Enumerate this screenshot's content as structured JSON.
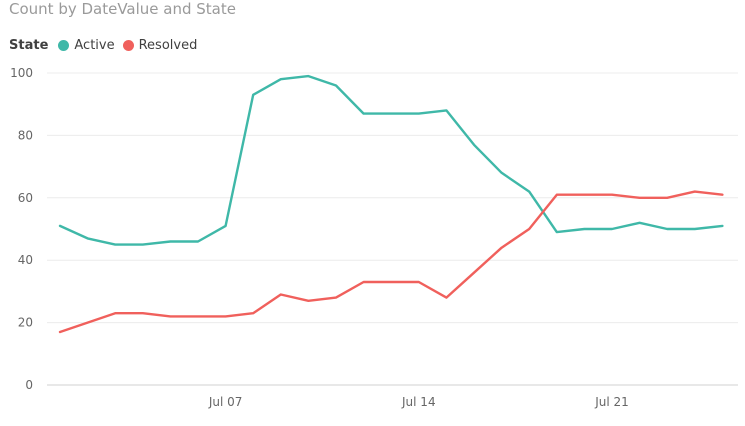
{
  "title": "Count by DateValue and State",
  "legend": {
    "title": "State",
    "items": [
      {
        "label": "Active",
        "color": "#3fb8a8"
      },
      {
        "label": "Resolved",
        "color": "#f0605c"
      }
    ]
  },
  "chart_data": {
    "type": "line",
    "title": "Count by DateValue and State",
    "xlabel": "",
    "ylabel": "",
    "x": [
      "2024-07-01",
      "2024-07-02",
      "2024-07-03",
      "2024-07-04",
      "2024-07-05",
      "2024-07-06",
      "2024-07-07",
      "2024-07-08",
      "2024-07-09",
      "2024-07-10",
      "2024-07-11",
      "2024-07-12",
      "2024-07-13",
      "2024-07-14",
      "2024-07-15",
      "2024-07-16",
      "2024-07-17",
      "2024-07-18",
      "2024-07-19",
      "2024-07-20",
      "2024-07-21",
      "2024-07-22",
      "2024-07-23",
      "2024-07-24",
      "2024-07-25",
      "2024-07-26"
    ],
    "x_ticks": [
      "Jul 07",
      "Jul 14",
      "Jul 21"
    ],
    "y_ticks": [
      "0",
      "20",
      "40",
      "60",
      "80",
      "100"
    ],
    "ylim": [
      0,
      100
    ],
    "grid": true,
    "legend_position": "top-left",
    "series": [
      {
        "name": "Active",
        "color": "#3fb8a8",
        "values": [
          51,
          47,
          45,
          45,
          46,
          46,
          51,
          93,
          98,
          99,
          96,
          87,
          87,
          87,
          88,
          77,
          68,
          62,
          49,
          50,
          50,
          52,
          50,
          50,
          51,
          null
        ]
      },
      {
        "name": "Resolved",
        "color": "#f0605c",
        "values": [
          17,
          20,
          23,
          23,
          22,
          22,
          22,
          23,
          29,
          27,
          28,
          33,
          33,
          33,
          28,
          36,
          44,
          50,
          61,
          61,
          61,
          60,
          60,
          62,
          61,
          null
        ]
      }
    ]
  }
}
